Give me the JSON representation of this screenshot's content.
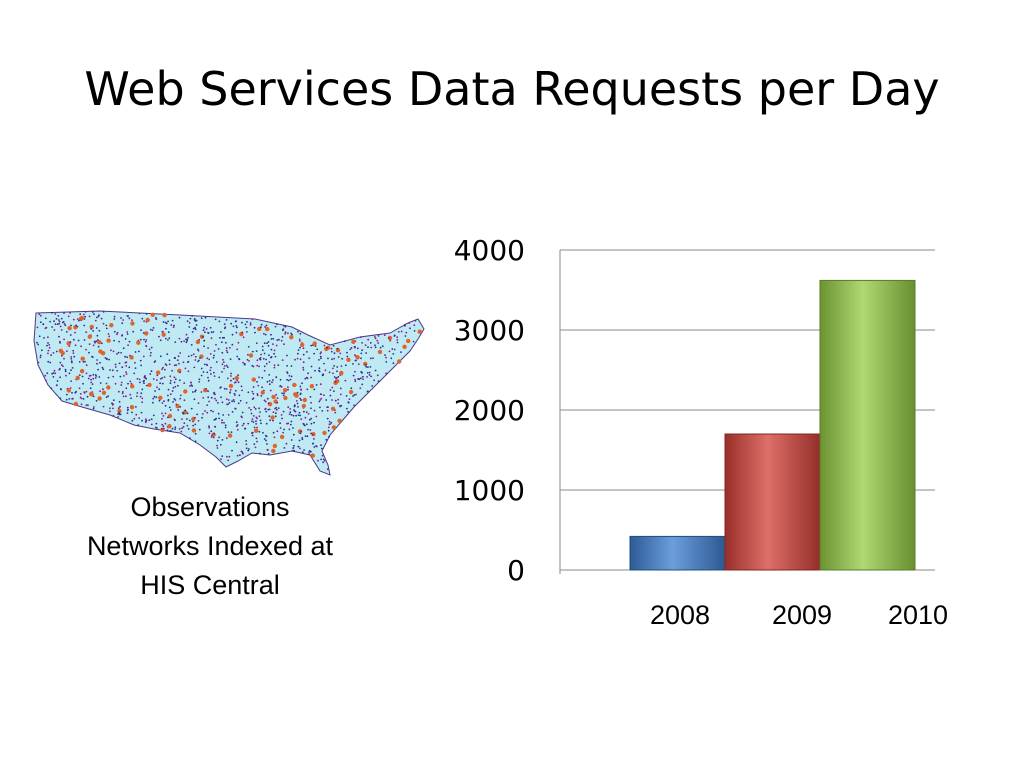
{
  "slide": {
    "title": "Web Services Data Requests per Day"
  },
  "map": {
    "caption_lines": [
      "Observations",
      "Networks Indexed at",
      "HIS Central"
    ],
    "fill_color": "#bfeaf4",
    "point_colors": [
      "#2b2f8f",
      "#8a1a8a",
      "#e0642a"
    ]
  },
  "chart_data": {
    "type": "bar",
    "title": "",
    "xlabel": "",
    "ylabel": "",
    "categories": [
      "2008",
      "2009",
      "2010"
    ],
    "values": [
      420,
      1700,
      3620
    ],
    "colors": [
      "#3d7fd1",
      "#d4413a",
      "#96cc45"
    ],
    "ylim": [
      0,
      4000
    ],
    "yticks": [
      0,
      1000,
      2000,
      3000,
      4000
    ],
    "grid": true,
    "legend": "none"
  }
}
